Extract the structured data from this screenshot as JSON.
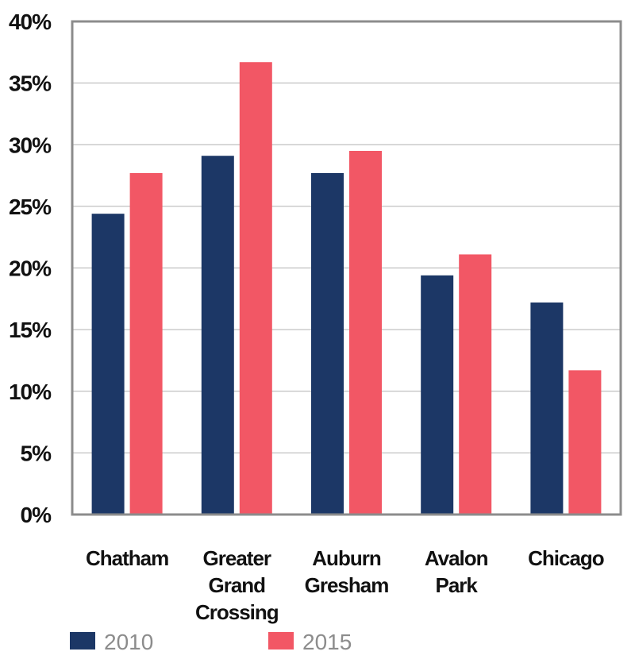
{
  "chart_data": {
    "type": "bar",
    "categories": [
      [
        "Chatham"
      ],
      [
        "Greater",
        "Grand",
        "Crossing"
      ],
      [
        "Auburn",
        "Gresham"
      ],
      [
        "Avalon",
        "Park"
      ],
      [
        "Chicago"
      ]
    ],
    "series": [
      {
        "name": "2010",
        "color": "#1c3766",
        "values": [
          24.4,
          29.1,
          27.7,
          19.4,
          17.2
        ]
      },
      {
        "name": "2015",
        "color": "#f25765",
        "values": [
          27.7,
          36.7,
          29.5,
          21.1,
          11.7
        ]
      }
    ],
    "yticks": [
      "0%",
      "5%",
      "10%",
      "15%",
      "20%",
      "25%",
      "30%",
      "35%",
      "40%"
    ],
    "ylim": [
      0,
      40
    ],
    "grid": true,
    "legend_position": "bottom"
  }
}
